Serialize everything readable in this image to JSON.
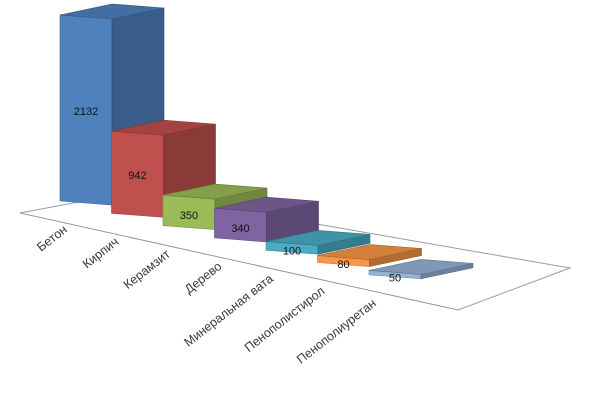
{
  "chart_data": {
    "type": "bar",
    "style": "3d-column",
    "categories": [
      "Бетон",
      "Кирпич",
      "Керамзит",
      "Дерево",
      "Минеральная вата",
      "Пенополистирол",
      "Пенополиуретан"
    ],
    "values": [
      2132,
      942,
      350,
      340,
      100,
      80,
      50
    ],
    "data_labels": [
      "2132",
      "942",
      "350",
      "340",
      "100",
      "80",
      "50"
    ],
    "colors": [
      "#4F81BD",
      "#C0504D",
      "#9BBB59",
      "#8064A2",
      "#4BACC6",
      "#F79646",
      "#95B3D7"
    ],
    "title": "",
    "xlabel": "",
    "ylabel": "",
    "legend": "none",
    "grid": false
  }
}
